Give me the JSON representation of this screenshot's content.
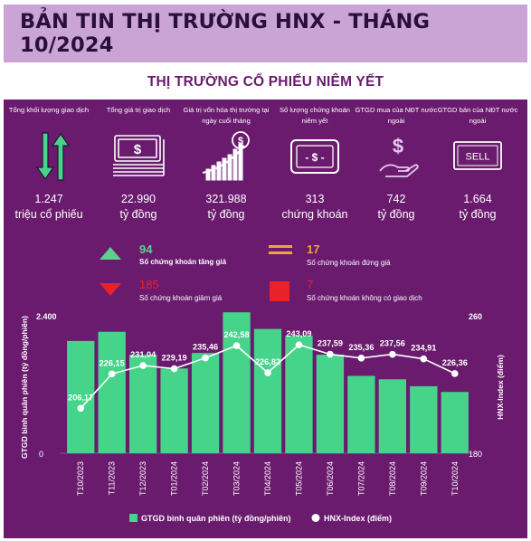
{
  "title": "BẢN TIN THỊ TRƯỜNG HNX - THÁNG 10/2024",
  "section_title": "THỊ TRƯỜNG CỔ PHIẾU NIÊM YẾT",
  "stats": [
    {
      "label": "Tổng khối lượng giao dịch",
      "icon": "up-down-arrows-icon",
      "value": "1.247",
      "unit": "triệu cổ phiếu"
    },
    {
      "label": "Tổng giá trị giao dịch",
      "icon": "money-stack-icon",
      "value": "22.990",
      "unit": "tỷ đồng"
    },
    {
      "label": "Giá trị vốn hóa thị trường tại ngày cuối tháng",
      "icon": "market-cap-growth-icon",
      "value": "321.988",
      "unit": "tỷ đồng"
    },
    {
      "label": "Số lượng chứng khoán niêm yết",
      "icon": "listed-securities-icon",
      "value": "313",
      "unit": "chứng khoán"
    },
    {
      "label": "GTGD mua của NĐT nước ngoài",
      "icon": "hand-dollar-icon",
      "value": "742",
      "unit": "tỷ đồng"
    },
    {
      "label": "GTGD bán của NĐT nước ngoài",
      "icon": "sell-sign-icon",
      "sign_text": "SELL",
      "value": "1.664",
      "unit": "tỷ đồng"
    }
  ],
  "counts": {
    "up": {
      "value": "94",
      "label": "Số chứng khoán tăng giá",
      "color": "#5fcf8e"
    },
    "flat": {
      "value": "17",
      "label": "Số chứng khoán đứng giá",
      "color": "#f2a33a"
    },
    "down": {
      "value": "185",
      "label": "Số chứng khoán giảm giá",
      "color": "#e8212a"
    },
    "none": {
      "value": "7",
      "label": "Số chứng khoán không có giao dịch",
      "color": "#e8212a"
    }
  },
  "chart_data": {
    "type": "bar",
    "categories": [
      "T10/2023",
      "T11/2023",
      "T12/2023",
      "T01/2024",
      "T02/2024",
      "T03/2024",
      "T04/2024",
      "T05/2024",
      "T06/2024",
      "T07/2024",
      "T08/2024",
      "T09/2024",
      "T10/2024"
    ],
    "series": [
      {
        "name": "GTGD bình quân phiên (tỷ đồng/phiên)",
        "type": "bar",
        "axis": "left",
        "values": [
          1960,
          2120,
          1720,
          1480,
          1750,
          2460,
          2170,
          2050,
          1720,
          1350,
          1290,
          1170,
          1070
        ]
      },
      {
        "name": "HNX-Index (điểm)",
        "type": "line",
        "axis": "right",
        "values": [
          206.17,
          226.15,
          231.04,
          229.19,
          235.46,
          242.58,
          226.82,
          243.09,
          237.59,
          235.36,
          237.56,
          234.91,
          226.36
        ],
        "labels": [
          "206,17",
          "226,15",
          "231,04",
          "229,19",
          "235,46",
          "242,58",
          "226,82",
          "243,09",
          "237,59",
          "235,36",
          "237,56",
          "234,91",
          "226,36"
        ]
      }
    ],
    "ylabel_left": "GTGD bình quân phiên (tỷ đồng/phiên)",
    "ylabel_right": "HNX-Index (điểm)",
    "ylim_left": [
      0,
      2400
    ],
    "ylim_right": [
      180,
      260
    ],
    "left_tick_labels": [
      "0",
      "2.400"
    ],
    "right_tick_labels": [
      "180",
      "260"
    ],
    "legend_position": "bottom",
    "colors": {
      "bar": "#46d38a",
      "line": "#ffffff"
    }
  }
}
